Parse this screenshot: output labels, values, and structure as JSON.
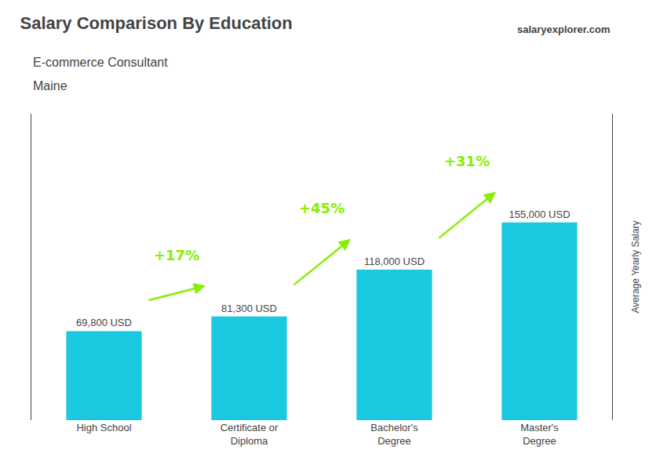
{
  "chart_data": {
    "type": "bar",
    "title": "Salary Comparison By Education",
    "subtitle": "E-commerce Consultant",
    "location": "Maine",
    "brand": "salaryexplorer.com",
    "ylabel": "Average Yearly Salary",
    "categories": [
      "High School",
      "Certificate or\nDiploma",
      "Bachelor's\nDegree",
      "Master's\nDegree"
    ],
    "values": [
      69800,
      81300,
      118000,
      155000
    ],
    "value_labels": [
      "69,800 USD",
      "81,300 USD",
      "118,000 USD",
      "155,000 USD"
    ],
    "data_labels": true,
    "color": "#1ac8e0",
    "annotations": [
      {
        "text": "+17%",
        "color": "#88ee00"
      },
      {
        "text": "+45%",
        "color": "#88ee00"
      },
      {
        "text": "+31%",
        "color": "#88ee00"
      }
    ],
    "ylim": [
      0,
      240250
    ],
    "yticks": [],
    "tick_labels": "x",
    "grid": false
  }
}
